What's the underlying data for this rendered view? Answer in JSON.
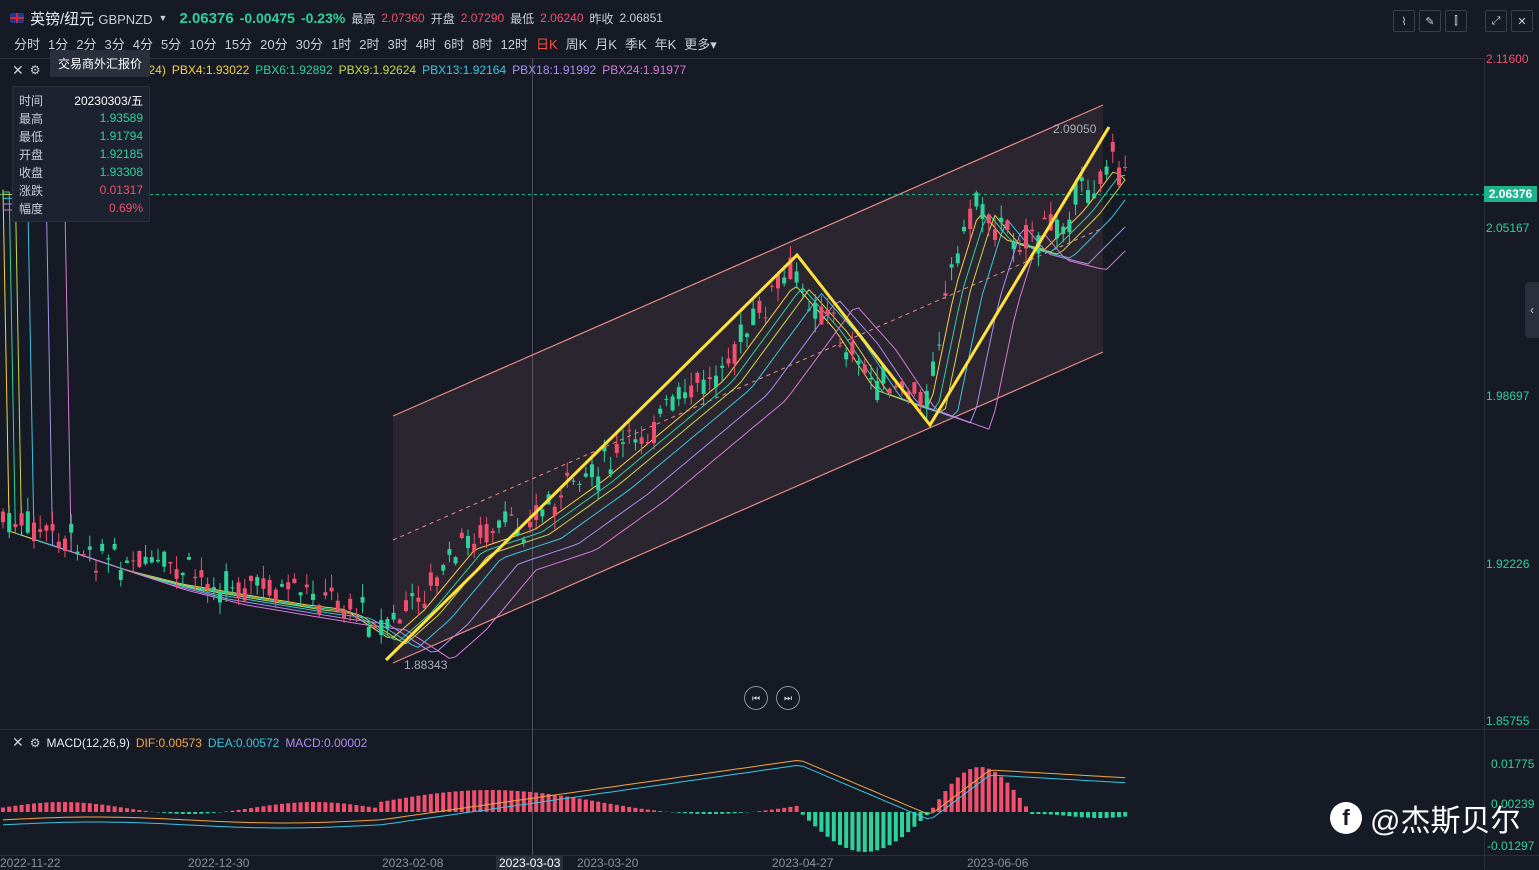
{
  "header": {
    "pair_name": "英镑/纽元",
    "pair_code": "GBPNZD",
    "price": "2.06376",
    "change": "-0.00475",
    "change_pct": "-0.23%",
    "high_label": "最高",
    "high": "2.07360",
    "open_label": "开盘",
    "open": "2.07290",
    "low_label": "最低",
    "low": "2.06240",
    "prev_label": "昨收",
    "prev": "2.06851"
  },
  "timeframes": [
    "分时",
    "1分",
    "2分",
    "3分",
    "4分",
    "5分",
    "10分",
    "15分",
    "20分",
    "30分",
    "1时",
    "2时",
    "3时",
    "4时",
    "6时",
    "8时",
    "12时",
    "日K",
    "周K",
    "月K",
    "季K",
    "年K",
    "更多"
  ],
  "active_timeframe": "日K",
  "tooltip": "交易商外汇报价",
  "ma_legend": [
    {
      "label": "PBX4:1.93022",
      "color": "#f5d142"
    },
    {
      "label": "PBX6:1.92892",
      "color": "#2fd19b"
    },
    {
      "label": "PBX9:1.92624",
      "color": "#c8d84a"
    },
    {
      "label": "PBX13:1.92164",
      "color": "#3ac6e0"
    },
    {
      "label": "PBX18:1.91992",
      "color": "#a98ef0"
    },
    {
      "label": "PBX24:1.91977",
      "color": "#d57ad8"
    }
  ],
  "ma_legend_prefix": "24)",
  "infobox": {
    "rows": [
      {
        "k": "时间",
        "v": "20230303/五",
        "c": "#ffffff"
      },
      {
        "k": "最高",
        "v": "1.93589",
        "c": "#2fd19b"
      },
      {
        "k": "最低",
        "v": "1.91794",
        "c": "#2fd19b"
      },
      {
        "k": "开盘",
        "v": "1.92185",
        "c": "#2fd19b"
      },
      {
        "k": "收盘",
        "v": "1.93308",
        "c": "#2fd19b"
      },
      {
        "k": "涨跌",
        "v": "0.01317",
        "c": "#f0506e"
      },
      {
        "k": "幅度",
        "v": "0.69%",
        "c": "#f0506e"
      }
    ]
  },
  "price_axis": [
    "2.11600",
    "2.05167",
    "1.98697",
    "1.92226",
    "1.85755"
  ],
  "current_price_tag": "2.06376",
  "annotations": {
    "high_label": "2.09050",
    "low_label": "1.88343"
  },
  "macd": {
    "title": "MACD(12,26,9)",
    "dif": "DIF:0.00573",
    "dea": "DEA:0.00572",
    "macd": "MACD:0.00002",
    "axis": [
      "0.01775",
      "0.00239",
      "-0.01297"
    ]
  },
  "x_axis": [
    "2022-11-22",
    "2022-12-30",
    "2023-02-08",
    "2023-03-03",
    "2023-03-20",
    "2023-04-27",
    "2023-06-06"
  ],
  "x_axis_selected": "2023-03-03",
  "watermark": "@杰斯贝尔",
  "colors": {
    "up": "#f0506e",
    "down": "#2fd19b",
    "bg": "#161a25",
    "channel": "#e88a8a",
    "zigzag": "#ffe23a"
  }
}
